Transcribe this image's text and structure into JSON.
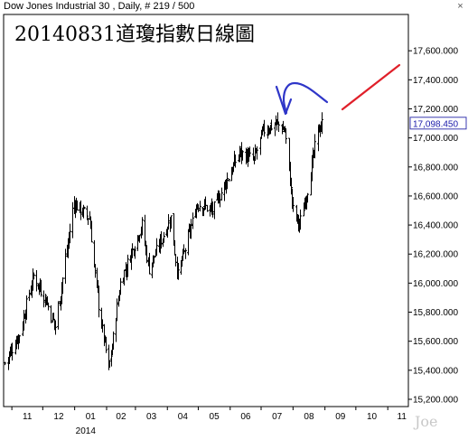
{
  "header": {
    "title": "Dow Jones Industrial 30 , Daily, # 219 / 500",
    "close_symbol": "×"
  },
  "annotation_title": "20140831道瓊指數日線圖",
  "watermark": "Joe",
  "colors": {
    "bars": "#000000",
    "annotation_blue": "#2f36c8",
    "annotation_red": "#e0202a",
    "last_price_box": "#3a3ab0"
  },
  "chart_data": {
    "type": "ohlc",
    "title": "Dow Jones Industrial 30 , Daily, # 219 / 500",
    "xlabel": "",
    "ylabel": "",
    "ylim": [
      15150,
      17850
    ],
    "yticks": [
      15200,
      15400,
      15600,
      15800,
      16000,
      16200,
      16400,
      16600,
      16800,
      17000,
      17200,
      17400,
      17600
    ],
    "ytick_labels": [
      "15,200.000",
      "15,400.000",
      "15,600.000",
      "15,800.000",
      "16,000.000",
      "16,200.000",
      "16,400.000",
      "16,600.000",
      "16,800.000",
      "17,000.000",
      "17,200.000",
      "17,400.000",
      "17,600.000"
    ],
    "xlim": [
      "2013-10-24",
      "2014-11-21"
    ],
    "month_ticks": [
      {
        "label": "11",
        "date": "2013-11-01"
      },
      {
        "label": "12",
        "date": "2013-12-01"
      },
      {
        "label": "01",
        "date": "2014-01-01"
      },
      {
        "label": "02",
        "date": "2014-02-01"
      },
      {
        "label": "03",
        "date": "2014-03-01"
      },
      {
        "label": "04",
        "date": "2014-04-01"
      },
      {
        "label": "05",
        "date": "2014-05-01"
      },
      {
        "label": "06",
        "date": "2014-06-01"
      },
      {
        "label": "07",
        "date": "2014-07-01"
      },
      {
        "label": "08",
        "date": "2014-08-01"
      },
      {
        "label": "09",
        "date": "2014-09-01"
      },
      {
        "label": "10",
        "date": "2014-10-01"
      },
      {
        "label": "11",
        "date": "2014-11-01"
      }
    ],
    "year_label": {
      "label": "2014",
      "date": "2014-01-01"
    },
    "last_value": 17098.45,
    "last_value_label": "17,098.450",
    "anchors": [
      [
        "2013-10-25",
        15450
      ],
      [
        "2013-11-08",
        15650
      ],
      [
        "2013-11-22",
        16050
      ],
      [
        "2013-12-03",
        15900
      ],
      [
        "2013-12-13",
        15700
      ],
      [
        "2013-12-31",
        16550
      ],
      [
        "2014-01-15",
        16450
      ],
      [
        "2014-01-24",
        15850
      ],
      [
        "2014-02-03",
        15400
      ],
      [
        "2014-02-14",
        16000
      ],
      [
        "2014-03-07",
        16400
      ],
      [
        "2014-03-14",
        16100
      ],
      [
        "2014-04-04",
        16450
      ],
      [
        "2014-04-11",
        16050
      ],
      [
        "2014-04-30",
        16550
      ],
      [
        "2014-05-15",
        16500
      ],
      [
        "2014-06-10",
        16900
      ],
      [
        "2014-06-24",
        16850
      ],
      [
        "2014-07-03",
        17050
      ],
      [
        "2014-07-16",
        17100
      ],
      [
        "2014-07-24",
        17050
      ],
      [
        "2014-08-01",
        16500
      ],
      [
        "2014-08-07",
        16400
      ],
      [
        "2014-08-15",
        16650
      ],
      [
        "2014-08-25",
        17050
      ],
      [
        "2014-08-29",
        17098
      ]
    ]
  }
}
